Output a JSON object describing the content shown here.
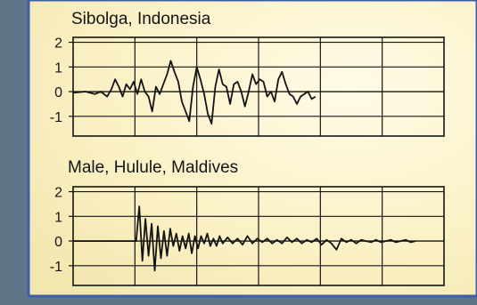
{
  "colors": {
    "backdrop": "#5f7688",
    "paper": "#fbf4cf",
    "paper_edge": "#f0e6b2",
    "frame": "#3e5fa5",
    "ink": "#141414"
  },
  "chart_data": [
    {
      "type": "line",
      "title": "Sibolga, Indonesia",
      "xlabel": "",
      "ylabel": "",
      "xlim": [
        0,
        6
      ],
      "ylim": [
        -1.8,
        2.2
      ],
      "yticks": [
        2,
        1,
        0,
        -1
      ],
      "ytick_labels": [
        "2",
        "1",
        "0",
        "-1"
      ],
      "xgrid": [
        1,
        2,
        3,
        4,
        5
      ],
      "grid": true,
      "series": [
        {
          "name": "",
          "x": [
            0.0,
            0.2,
            0.35,
            0.45,
            0.55,
            0.62,
            0.68,
            0.74,
            0.8,
            0.86,
            0.92,
            0.98,
            1.04,
            1.1,
            1.16,
            1.22,
            1.28,
            1.34,
            1.4,
            1.46,
            1.52,
            1.58,
            1.64,
            1.7,
            1.76,
            1.82,
            1.88,
            1.94,
            2.0,
            2.06,
            2.12,
            2.18,
            2.24,
            2.3,
            2.36,
            2.42,
            2.48,
            2.54,
            2.6,
            2.66,
            2.72,
            2.78,
            2.84,
            2.9,
            2.96,
            3.02,
            3.08,
            3.14,
            3.2,
            3.26,
            3.32,
            3.38,
            3.44,
            3.5,
            3.56,
            3.62,
            3.68,
            3.74,
            3.8,
            3.86,
            3.92
          ],
          "y": [
            -0.05,
            0.0,
            -0.1,
            0.0,
            -0.2,
            0.1,
            0.5,
            0.2,
            -0.2,
            0.3,
            0.1,
            0.4,
            -0.1,
            0.5,
            0.0,
            -0.2,
            -0.8,
            0.2,
            -0.1,
            0.3,
            0.7,
            1.25,
            0.8,
            0.4,
            -0.4,
            -0.8,
            -1.2,
            0.2,
            1.0,
            0.5,
            -0.1,
            -0.9,
            -1.3,
            0.2,
            0.9,
            0.3,
            0.2,
            -0.5,
            0.3,
            0.4,
            0.0,
            -0.6,
            0.0,
            0.7,
            0.3,
            0.5,
            0.4,
            -0.2,
            0.0,
            -0.4,
            0.5,
            0.8,
            0.3,
            -0.1,
            -0.2,
            -0.5,
            -0.2,
            -0.1,
            0.0,
            -0.3,
            -0.2
          ]
        }
      ]
    },
    {
      "type": "line",
      "title": "Male, Hulule, Maldives",
      "xlabel": "",
      "ylabel": "",
      "xlim": [
        0,
        6
      ],
      "ylim": [
        -1.8,
        2.2
      ],
      "yticks": [
        2,
        1,
        0,
        -1
      ],
      "ytick_labels": [
        "2",
        "1",
        "0",
        "-1"
      ],
      "xgrid": [
        1,
        2,
        3,
        4,
        5
      ],
      "grid": true,
      "series": [
        {
          "name": "",
          "x": [
            0.0,
            0.5,
            0.9,
            1.02,
            1.07,
            1.12,
            1.17,
            1.22,
            1.27,
            1.32,
            1.37,
            1.42,
            1.47,
            1.52,
            1.57,
            1.62,
            1.67,
            1.72,
            1.77,
            1.82,
            1.87,
            1.92,
            1.97,
            2.02,
            2.07,
            2.12,
            2.17,
            2.22,
            2.27,
            2.32,
            2.37,
            2.42,
            2.5,
            2.58,
            2.66,
            2.74,
            2.82,
            2.9,
            2.98,
            3.06,
            3.14,
            3.22,
            3.3,
            3.38,
            3.46,
            3.54,
            3.62,
            3.7,
            3.78,
            3.86,
            3.94,
            4.02,
            4.1,
            4.18,
            4.26,
            4.34,
            4.42,
            4.5,
            4.58,
            4.66,
            4.74,
            4.82,
            4.9,
            4.98,
            5.06,
            5.14,
            5.22,
            5.3,
            5.38,
            5.46,
            5.54
          ],
          "y": [
            0.0,
            0.0,
            0.0,
            0.0,
            1.4,
            -0.8,
            0.9,
            -0.6,
            0.7,
            -1.2,
            0.6,
            -0.7,
            0.4,
            -0.6,
            0.5,
            -0.2,
            0.3,
            -0.4,
            0.2,
            -0.3,
            0.3,
            -0.5,
            0.2,
            -0.3,
            0.2,
            -0.1,
            0.3,
            -0.2,
            0.1,
            -0.2,
            0.2,
            -0.1,
            0.15,
            -0.1,
            0.1,
            -0.15,
            0.2,
            -0.1,
            0.1,
            -0.05,
            0.1,
            -0.1,
            0.05,
            -0.1,
            0.15,
            -0.05,
            0.1,
            -0.1,
            0.05,
            -0.05,
            0.1,
            -0.15,
            0.05,
            -0.1,
            -0.35,
            0.1,
            -0.05,
            0.05,
            -0.1,
            0.05,
            0.0,
            -0.05,
            0.05,
            -0.05,
            0.0,
            0.05,
            -0.05,
            0.0,
            0.05,
            -0.05,
            0.0
          ]
        }
      ]
    }
  ]
}
